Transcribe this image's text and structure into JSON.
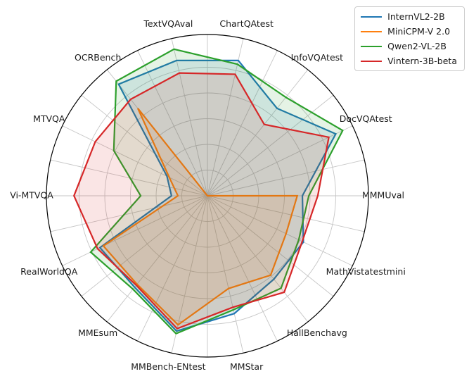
{
  "chart_data": {
    "type": "radar",
    "title": "",
    "categories": [
      "MMMUval",
      "DocVQAtest",
      "InfoVQAtest",
      "ChartQAtest",
      "TextVQAval",
      "OCRBench",
      "MTVQA",
      "Vi-MTVQA",
      "RealWorldQA",
      "MMEsum",
      "MMBench-ENtest",
      "MMStar",
      "HallBenchavg",
      "MathVistatestmini"
    ],
    "angles_deg": [
      0,
      25.714,
      51.429,
      77.143,
      102.857,
      128.571,
      154.286,
      180,
      205.714,
      231.429,
      257.143,
      282.857,
      308.571,
      334.286
    ],
    "series": [
      {
        "name": "InternVL2-2B",
        "color": "#1f77b4",
        "values": [
          0.74,
          1.11,
          0.87,
          1.08,
          1.08,
          1.11,
          0.35,
          0.28,
          0.93,
          0.91,
          1.08,
          0.94,
          0.83,
          0.83
        ]
      },
      {
        "name": "MiniCPM-V 2.0",
        "color": "#ff7f0e",
        "values": [
          0.7,
          0.0,
          0.0,
          0.0,
          0.0,
          0.87,
          0.33,
          0.23,
          0.9,
          0.88,
          1.03,
          0.74,
          0.79,
          0.68
        ]
      },
      {
        "name": "Qwen2-VL-2B",
        "color": "#2ca02c",
        "values": [
          0.79,
          1.17,
          0.98,
          1.05,
          1.17,
          1.14,
          0.81,
          0.52,
          1.01,
          0.93,
          1.1,
          0.91,
          0.92,
          0.79
        ]
      },
      {
        "name": "Vintern-3B-beta",
        "color": "#d62728",
        "values": [
          0.86,
          1.05,
          0.71,
          0.97,
          0.98,
          0.96,
          0.97,
          1.04,
          0.95,
          0.89,
          1.06,
          0.89,
          0.96,
          0.82
        ]
      }
    ],
    "value_scale_note": "values normalized; 1.0 = outermost labeled gridline ring",
    "ring_values": [
      0.2,
      0.4,
      0.6,
      0.8,
      1.0
    ],
    "outer_limit": 1.255,
    "radial_gridline_count": 28,
    "grid": true,
    "legend_position": "upper right",
    "fill_opacity": 0.12,
    "grid_color": "#c6c6c6",
    "spine_color": "#000000"
  }
}
